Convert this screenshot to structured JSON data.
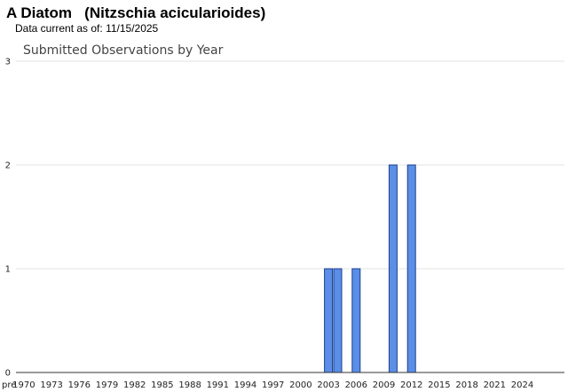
{
  "header": {
    "species_common": "A Diatom",
    "species_scientific": "(Nitzschia acicularioides)",
    "data_current_label": "Data current as of:",
    "data_current_date": "11/15/2025"
  },
  "chart_data": {
    "type": "bar",
    "title": "Submitted Observations by Year",
    "xlabel": "",
    "ylabel": "",
    "ylim": [
      0,
      3
    ],
    "yticks": [
      0,
      1,
      2,
      3
    ],
    "grid": true,
    "categories": [
      "pre",
      "1970",
      "1971",
      "1972",
      "1973",
      "1974",
      "1975",
      "1976",
      "1977",
      "1978",
      "1979",
      "1980",
      "1981",
      "1982",
      "1983",
      "1984",
      "1985",
      "1986",
      "1987",
      "1988",
      "1989",
      "1990",
      "1991",
      "1992",
      "1993",
      "1994",
      "1995",
      "1996",
      "1997",
      "1998",
      "1999",
      "2000",
      "2001",
      "2002",
      "2003",
      "2004",
      "2005",
      "2006",
      "2007",
      "2008",
      "2009",
      "2010",
      "2011",
      "2012",
      "2013",
      "2014",
      "2015",
      "2016",
      "2017",
      "2018",
      "2019",
      "2020",
      "2021",
      "2022",
      "2023",
      "2024",
      "2025"
    ],
    "visible_tick_labels": [
      "pre",
      "1970",
      "1973",
      "1976",
      "1979",
      "1982",
      "1985",
      "1988",
      "1991",
      "1994",
      "1997",
      "2000",
      "2003",
      "2006",
      "2009",
      "2012",
      "2015",
      "2018",
      "2021",
      "2024"
    ],
    "values": [
      0,
      0,
      0,
      0,
      0,
      0,
      0,
      0,
      0,
      0,
      0,
      0,
      0,
      0,
      0,
      0,
      0,
      0,
      0,
      0,
      0,
      0,
      0,
      0,
      0,
      0,
      0,
      0,
      0,
      0,
      0,
      0,
      0,
      0,
      1,
      1,
      0,
      1,
      0,
      0,
      0,
      2,
      0,
      2,
      0,
      0,
      0,
      0,
      0,
      0,
      0,
      0,
      0,
      0,
      0,
      0,
      0
    ],
    "bar_color": "#5b8ee6",
    "bar_stroke": "#1c3f8f"
  }
}
